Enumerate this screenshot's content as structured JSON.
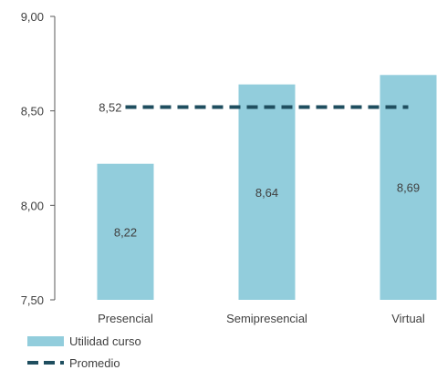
{
  "chart_data": {
    "type": "bar",
    "categories": [
      "Presencial",
      "Semipresencial",
      "Virtual"
    ],
    "series": [
      {
        "name": "Utilidad curso",
        "type": "bar",
        "color": "#92CDDC",
        "values": [
          8.22,
          8.64,
          8.69
        ],
        "value_labels": [
          "8,22",
          "8,64",
          "8,69"
        ]
      },
      {
        "name": "Promedio",
        "type": "line",
        "style": "dashed",
        "color": "#1F4E5F",
        "values": [
          8.52,
          8.52,
          8.52
        ],
        "value_label": "8,52"
      }
    ],
    "ylim": [
      7.5,
      9.0
    ],
    "yticks": [
      7.5,
      8.0,
      8.5,
      9.0
    ],
    "ytick_labels": [
      "7,50",
      "8,00",
      "8,50",
      "9,00"
    ],
    "grid": false,
    "legend_position": "bottom-left"
  }
}
